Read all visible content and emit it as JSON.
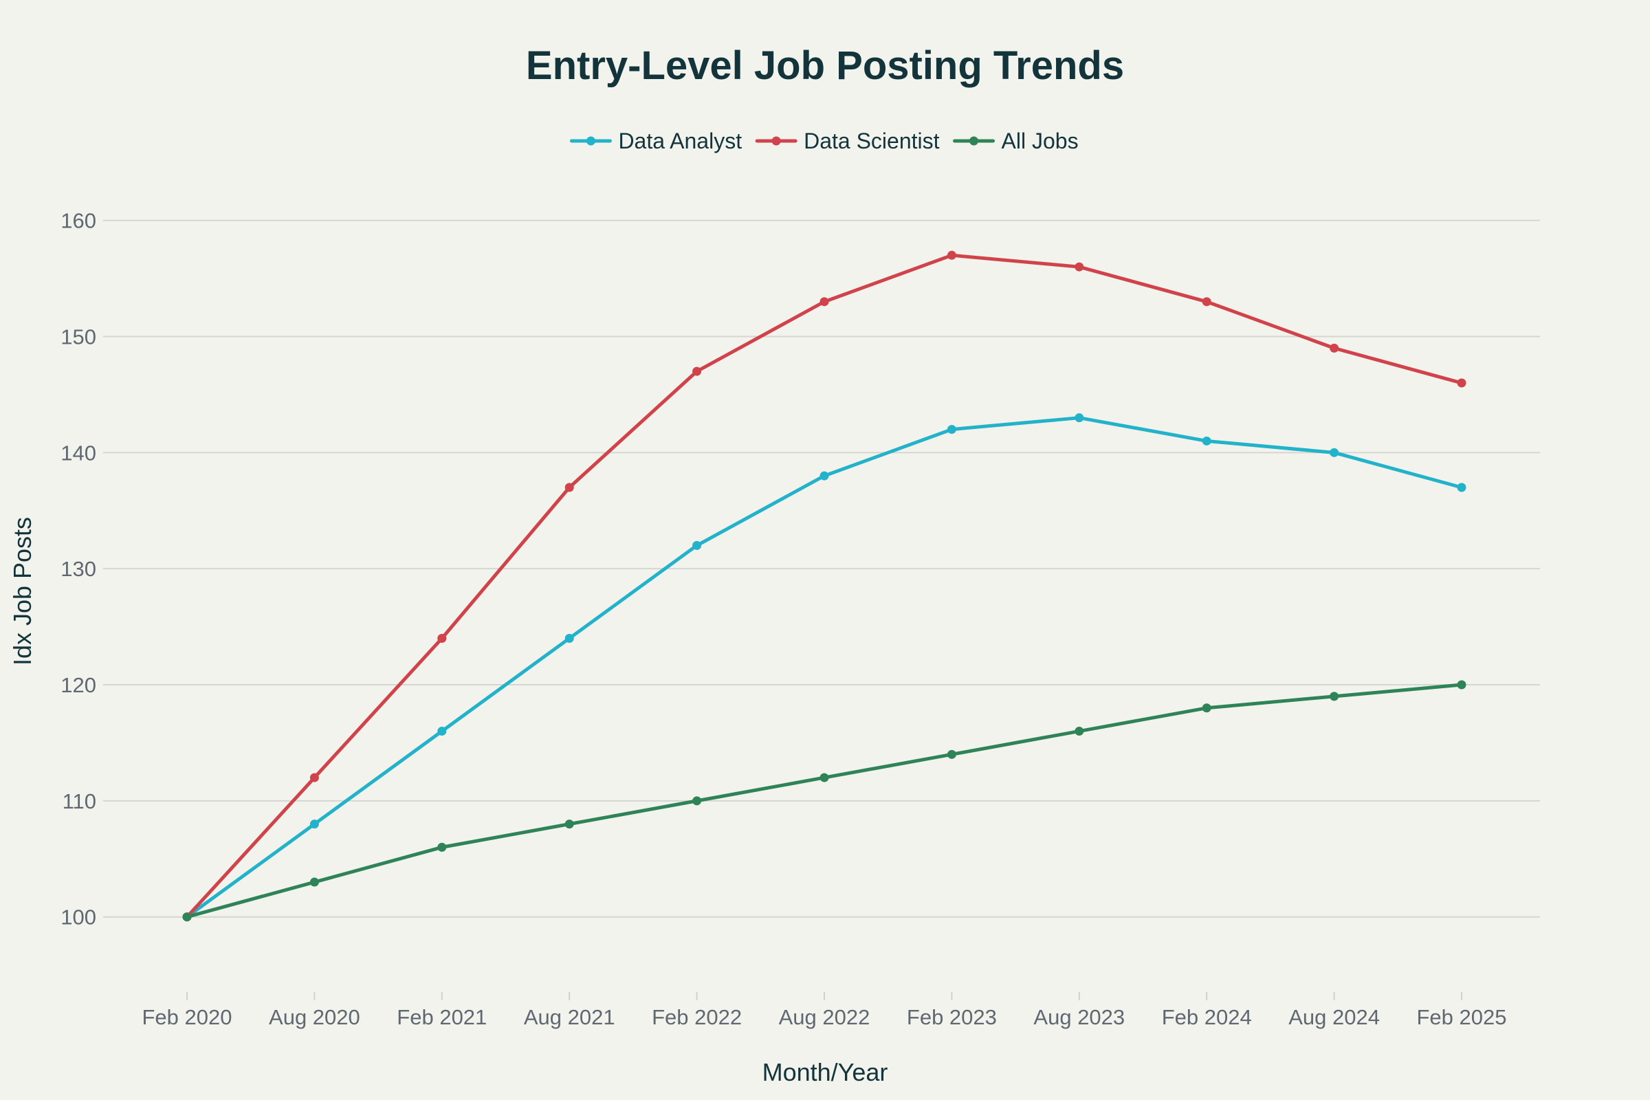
{
  "chart_data": {
    "type": "line",
    "title": "Entry-Level Job Posting Trends",
    "xlabel": "Month/Year",
    "ylabel": "Idx Job Posts",
    "categories": [
      "Feb 2020",
      "Aug 2020",
      "Feb 2021",
      "Aug 2021",
      "Feb 2022",
      "Aug 2022",
      "Feb 2023",
      "Aug 2023",
      "Feb 2024",
      "Aug 2024",
      "Feb 2025"
    ],
    "ylim": [
      94,
      163
    ],
    "yticks": [
      100,
      110,
      120,
      130,
      140,
      150,
      160
    ],
    "grid": true,
    "legend_position": "top-center",
    "series": [
      {
        "name": "Data Analyst",
        "color": "#22b2c9",
        "values": [
          100,
          108,
          116,
          124,
          132,
          138,
          142,
          143,
          141,
          140,
          137
        ]
      },
      {
        "name": "Data Scientist",
        "color": "#d1434a",
        "values": [
          100,
          112,
          124,
          137,
          147,
          153,
          157,
          156,
          153,
          149,
          146
        ]
      },
      {
        "name": "All Jobs",
        "color": "#2e8456",
        "values": [
          100,
          103,
          106,
          108,
          110,
          112,
          114,
          116,
          118,
          119,
          120
        ]
      }
    ]
  }
}
